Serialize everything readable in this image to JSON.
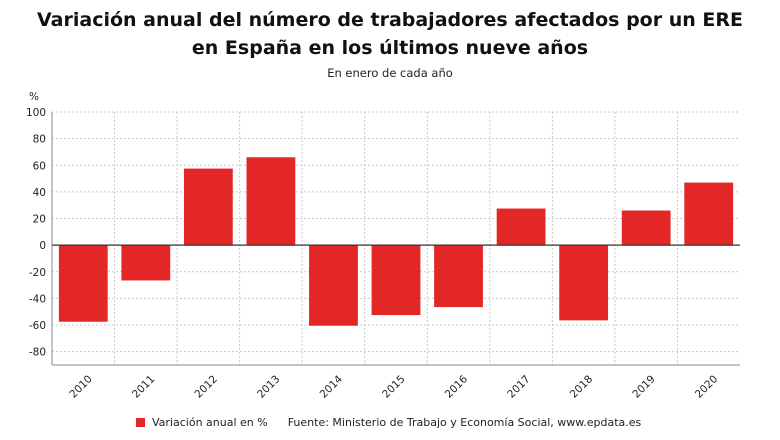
{
  "title_line1": "Variación anual del número de trabajadores afectados por un ERE",
  "title_line2": "en España en los últimos nueve años",
  "subtitle": "En enero de cada año",
  "source": "Fuente: Ministerio de Trabajo y Economía Social, www.epdata.es",
  "colors": {
    "bar": "#e32626",
    "grid": "#c8c8c8",
    "axis": "#333333"
  },
  "chart_data": {
    "type": "bar",
    "unit_label": "%",
    "categories": [
      "2010",
      "2011",
      "2012",
      "2013",
      "2014",
      "2015",
      "2016",
      "2017",
      "2018",
      "2019",
      "2020"
    ],
    "series": [
      {
        "name": "Variación anual en %",
        "values": [
          -57.5,
          -26.5,
          57.5,
          66,
          -60.5,
          -52.5,
          -46.5,
          27.5,
          -56.5,
          26,
          47
        ]
      }
    ],
    "yticks": [
      100,
      80,
      60,
      40,
      20,
      0,
      -20,
      -40,
      -60,
      -80
    ],
    "ylim": [
      -90,
      100
    ],
    "grid": true,
    "legend_position": "bottom"
  }
}
